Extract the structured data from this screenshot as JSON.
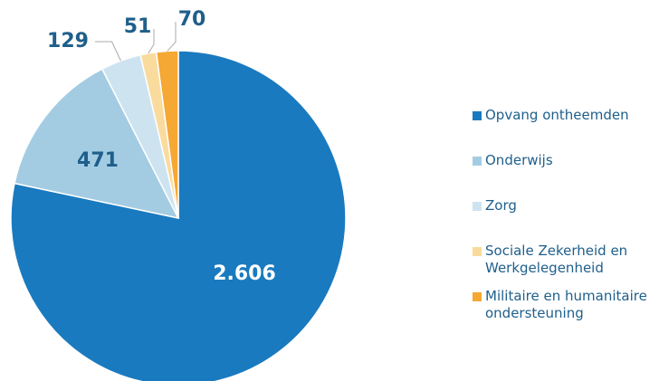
{
  "chart_data": {
    "type": "pie",
    "categories": [
      "Opvang ontheemden",
      "Onderwijs",
      "Zorg",
      "Sociale Zekerheid en Werkgelegenheid",
      "Militaire en humanitaire ondersteuning"
    ],
    "values": [
      2606,
      471,
      129,
      51,
      70
    ],
    "value_labels": [
      "2.606",
      "471",
      "129",
      "51",
      "70"
    ],
    "colors": [
      "#1a7abf",
      "#a3cce3",
      "#cde3f0",
      "#fadb9e",
      "#f5a833"
    ],
    "legend": "right"
  }
}
